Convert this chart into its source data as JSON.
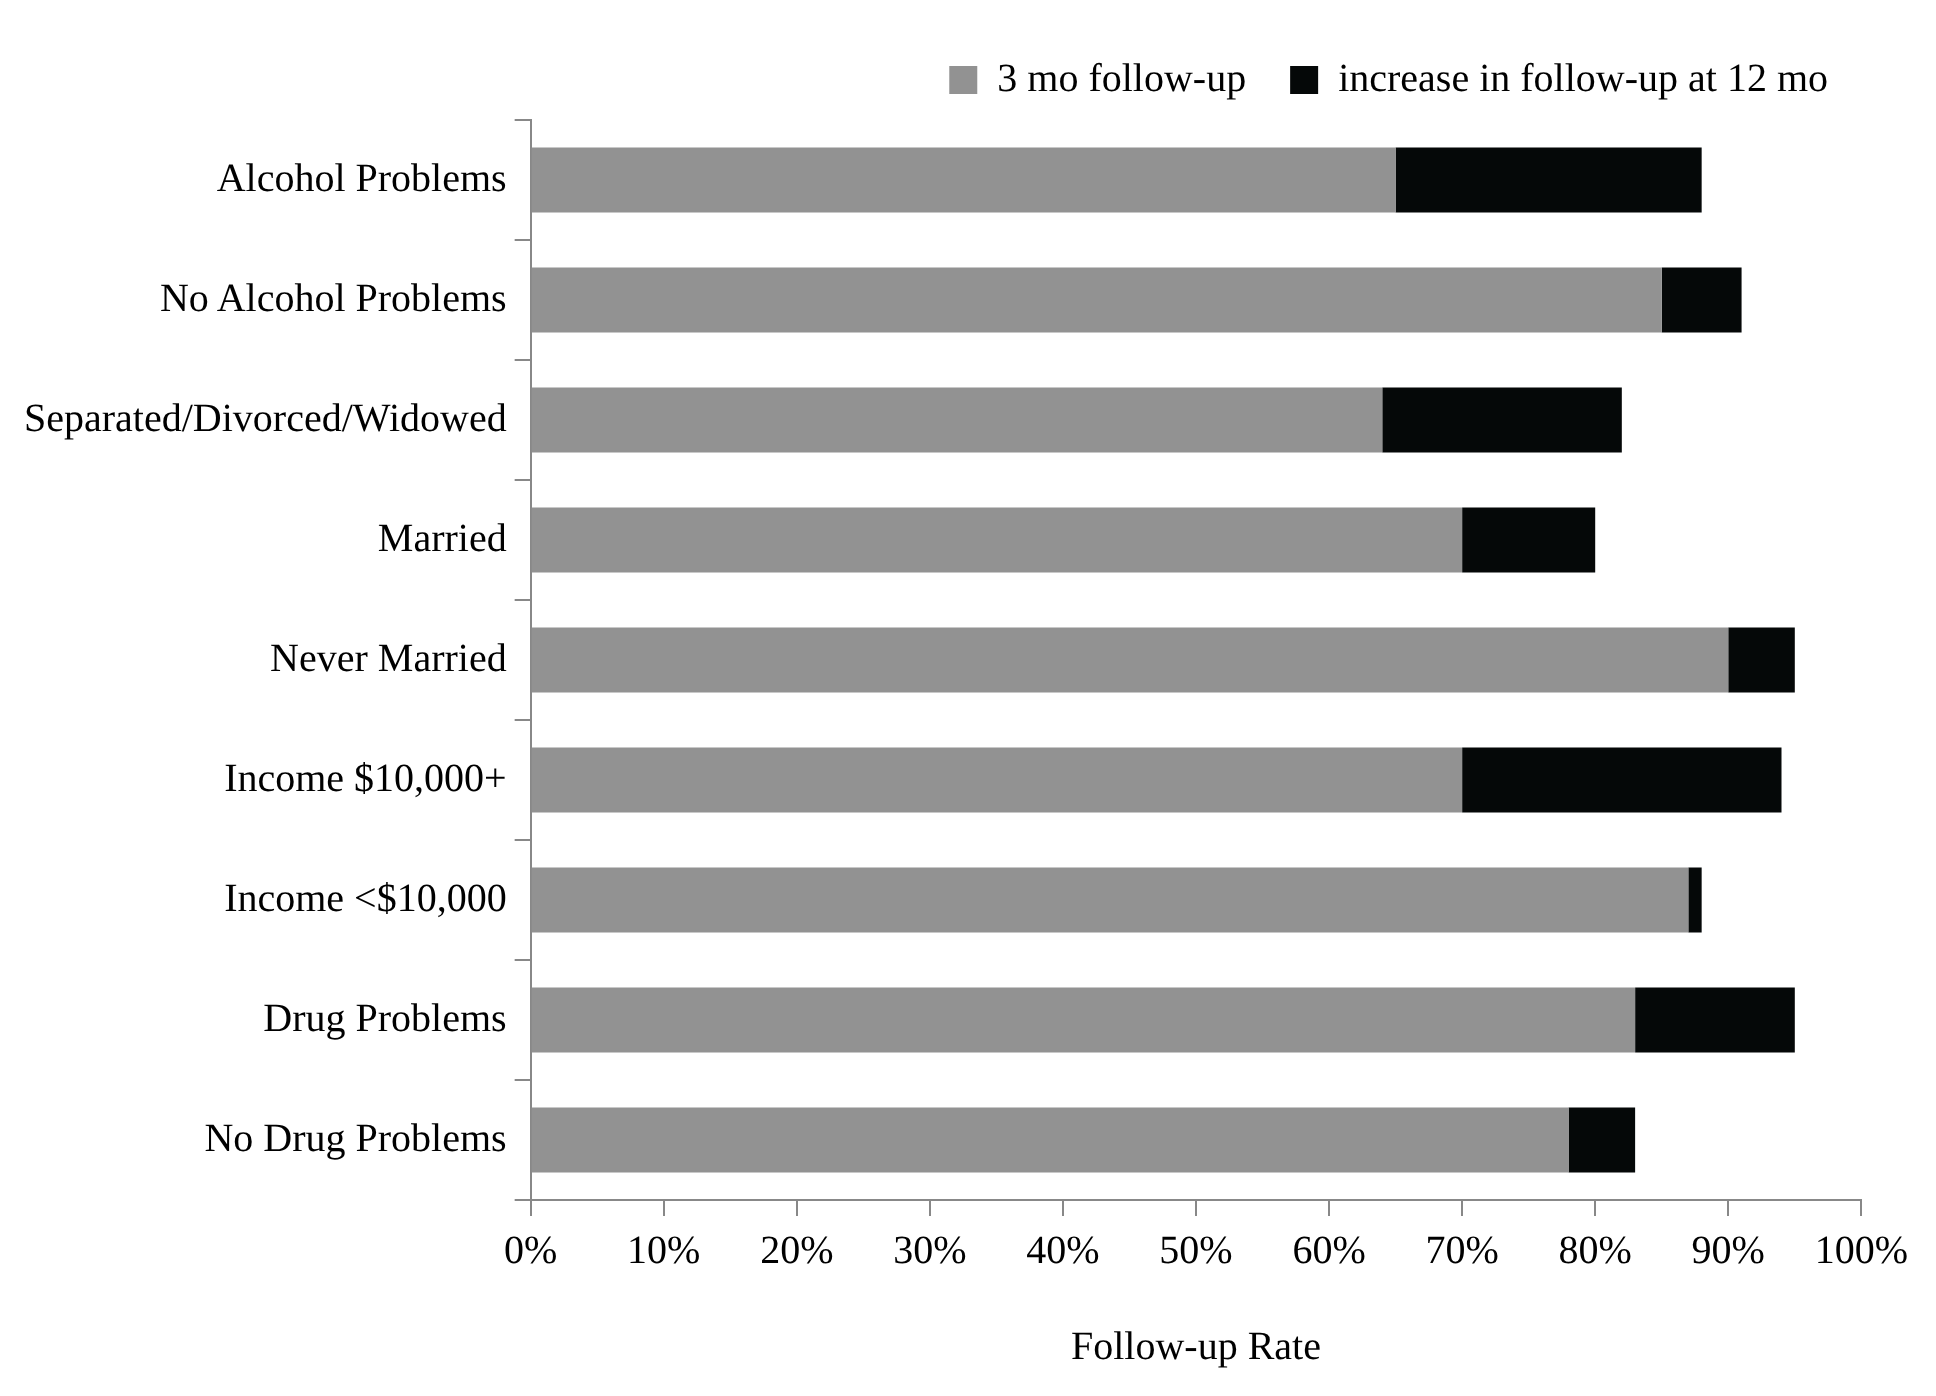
{
  "chart_data": {
    "type": "bar",
    "orientation": "horizontal",
    "stacked": true,
    "xlabel": "Follow-up Rate",
    "categories": [
      "Alcohol Problems",
      "No Alcohol Problems",
      "Separated/Divorced/Widowed",
      "Married",
      "Never Married",
      "Income $10,000+",
      "Income <$10,000",
      "Drug Problems",
      "No Drug Problems"
    ],
    "series": [
      {
        "name": "3 mo follow-up",
        "color": "#929292",
        "values": [
          65,
          85,
          64,
          70,
          90,
          70,
          87,
          83,
          78
        ]
      },
      {
        "name": "increase in follow-up at 12 mo",
        "color": "#050808",
        "values": [
          23,
          6,
          18,
          10,
          5,
          24,
          1,
          12,
          5
        ]
      }
    ],
    "xlim": [
      0,
      100
    ],
    "xticks": [
      {
        "value": 0,
        "label": "0%"
      },
      {
        "value": 10,
        "label": "10%"
      },
      {
        "value": 20,
        "label": "20%"
      },
      {
        "value": 30,
        "label": "30%"
      },
      {
        "value": 40,
        "label": "40%"
      },
      {
        "value": 50,
        "label": "50%"
      },
      {
        "value": 60,
        "label": "60%"
      },
      {
        "value": 70,
        "label": "70%"
      },
      {
        "value": 80,
        "label": "80%"
      },
      {
        "value": 90,
        "label": "90%"
      },
      {
        "value": 100,
        "label": "100%"
      }
    ],
    "grid": false,
    "legend": "top right"
  }
}
